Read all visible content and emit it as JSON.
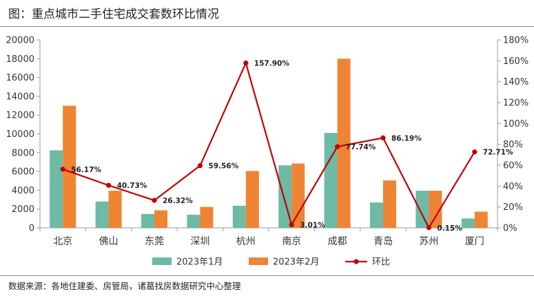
{
  "title": "图：重点城市二手住宅成交套数环比情况",
  "source": "数据来源：各地住建委、房管局，诸葛找房数据研究中心整理",
  "chart_data": {
    "type": "bar",
    "title": "图：重点城市二手住宅成交套数环比情况",
    "categories": [
      "北京",
      "佛山",
      "东莞",
      "深圳",
      "杭州",
      "南京",
      "成都",
      "青岛",
      "苏州",
      "厦门"
    ],
    "series": [
      {
        "name": "2023年1月",
        "type": "bar",
        "axis": "left",
        "color": "#6dbaa6",
        "values": [
          8250,
          2800,
          1480,
          1400,
          2350,
          6650,
          10100,
          2700,
          3950,
          1000
        ]
      },
      {
        "name": "2023年2月",
        "type": "bar",
        "axis": "left",
        "color": "#ef8434",
        "values": [
          13000,
          3950,
          1870,
          2230,
          6050,
          6850,
          18000,
          5050,
          3950,
          1720
        ]
      },
      {
        "name": "环比",
        "type": "line",
        "axis": "right",
        "color": "#c00000",
        "values": [
          56.17,
          40.73,
          26.32,
          59.56,
          157.9,
          3.01,
          77.74,
          86.19,
          0.15,
          72.71
        ],
        "labels": [
          "56.17%",
          "40.73%",
          "26.32%",
          "59.56%",
          "157.90%",
          "3.01%",
          "77.74%",
          "86.19%",
          "0.15%",
          "72.71%"
        ]
      }
    ],
    "ylim_left": [
      0,
      20000
    ],
    "ylim_right": [
      0,
      180
    ],
    "yticks_left": [
      "0",
      "2000",
      "4000",
      "6000",
      "8000",
      "10000",
      "12000",
      "14000",
      "16000",
      "18000",
      "20000"
    ],
    "yticks_right": [
      "0%",
      "20%",
      "40%",
      "60%",
      "80%",
      "100%",
      "120%",
      "140%",
      "160%",
      "180%"
    ],
    "legend": "bottom",
    "grid": false
  }
}
